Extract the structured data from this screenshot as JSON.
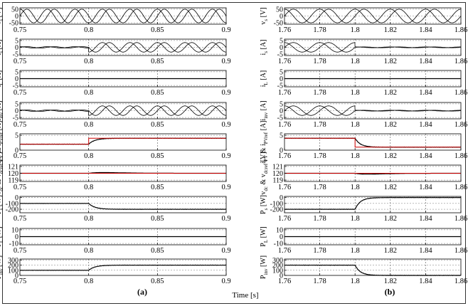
{
  "figure": {
    "xlabel": "Time [s]",
    "panel_labels": [
      "(a)",
      "(b)"
    ]
  },
  "chart_data": [
    {
      "type": "line",
      "column": "a",
      "x_ticks": [
        "0.75",
        "0.8",
        "0.85",
        "0.9"
      ],
      "x_tick_values": [
        0.75,
        0.8,
        0.85,
        0.9
      ],
      "xlim": [
        0.75,
        0.9
      ],
      "event_time": 0.8,
      "rows": [
        {
          "ylabel": "v_s [V]",
          "yticks": [
            "50",
            "0",
            "-50"
          ],
          "ytick_values": [
            50,
            0,
            -50
          ],
          "ylim": [
            -60,
            60
          ],
          "kind": "sine",
          "amp_before": 50,
          "amp_after": 50,
          "ref": null,
          "color": "#000000"
        },
        {
          "ylabel": "i_s [A]",
          "yticks": [
            "5",
            "0",
            "-5"
          ],
          "ytick_values": [
            5,
            0,
            -5
          ],
          "ylim": [
            -6,
            6
          ],
          "kind": "sine",
          "amp_before": 0.5,
          "amp_after": 3.5,
          "ref": null,
          "color": "#000000"
        },
        {
          "ylabel": "i_L [A]",
          "yticks": [
            "5",
            "0",
            "-5"
          ],
          "ytick_values": [
            5,
            0,
            -5
          ],
          "ylim": [
            -6,
            6
          ],
          "kind": "const",
          "before": 0,
          "after": 0,
          "ref": null,
          "color": "#000000"
        },
        {
          "ylabel": "i_inv [A]",
          "yticks": [
            "5",
            "0",
            "-5"
          ],
          "ytick_values": [
            5,
            0,
            -5
          ],
          "ylim": [
            -6,
            6
          ],
          "kind": "sine",
          "amp_before": 0.5,
          "amp_after": 3.5,
          "ref": null,
          "color": "#000000"
        },
        {
          "ylabel": "i_PV & i_PVref [A]",
          "yticks": [
            "5",
            "0"
          ],
          "ytick_values": [
            5,
            0
          ],
          "ylim": [
            0,
            5.5
          ],
          "kind": "step",
          "before": 2,
          "after": 4,
          "ref": "same",
          "color": "#000000",
          "ref_color": "#cc0000"
        },
        {
          "ylabel": "v_dc & v_dcref [V]",
          "yticks": [
            "121",
            "120",
            "119"
          ],
          "ytick_values": [
            121,
            120,
            119
          ],
          "ylim": [
            118.8,
            121.2
          ],
          "kind": "transient",
          "base": 120,
          "peak": 0.75,
          "ref": 120,
          "color": "#000000",
          "ref_color": "#cc0000"
        },
        {
          "ylabel": "P_s [W]",
          "yticks": [
            "0",
            "-100",
            "-200"
          ],
          "ytick_values": [
            0,
            -100,
            -200
          ],
          "ylim": [
            -260,
            20
          ],
          "kind": "step",
          "before": -100,
          "after": -200,
          "ref": null,
          "color": "#000000"
        },
        {
          "ylabel": "P_L [W]",
          "yticks": [
            "10",
            "0",
            "-10"
          ],
          "ytick_values": [
            10,
            0,
            -10
          ],
          "ylim": [
            -12,
            12
          ],
          "kind": "const",
          "before": 0,
          "after": 0,
          "ref": null,
          "color": "#000000"
        },
        {
          "ylabel": "P_inv [W]",
          "yticks": [
            "300",
            "200",
            "100",
            "0"
          ],
          "ytick_values": [
            300,
            200,
            100,
            0
          ],
          "ylim": [
            0,
            320
          ],
          "kind": "step",
          "before": 100,
          "after": 200,
          "ref": null,
          "color": "#000000"
        }
      ]
    },
    {
      "type": "line",
      "column": "b",
      "x_ticks": [
        "1.76",
        "1.78",
        "1.8",
        "1.82",
        "1.84",
        "1.86"
      ],
      "x_tick_values": [
        1.76,
        1.78,
        1.8,
        1.82,
        1.84,
        1.86
      ],
      "xlim": [
        1.76,
        1.86
      ],
      "event_time": 1.8,
      "rows": [
        {
          "ylabel": "v_s [V]",
          "yticks": [
            "50",
            "0",
            "-50"
          ],
          "ytick_values": [
            50,
            0,
            -50
          ],
          "ylim": [
            -60,
            60
          ],
          "kind": "sine",
          "amp_before": 50,
          "amp_after": 50,
          "ref": null,
          "color": "#000000"
        },
        {
          "ylabel": "i_s [A]",
          "yticks": [
            "5",
            "0",
            "-5"
          ],
          "ytick_values": [
            5,
            0,
            -5
          ],
          "ylim": [
            -6,
            6
          ],
          "kind": "sine",
          "amp_before": 3.5,
          "amp_after": 0.3,
          "ref": null,
          "color": "#000000"
        },
        {
          "ylabel": "i_L [A]",
          "yticks": [
            "5",
            "0",
            "-5"
          ],
          "ytick_values": [
            5,
            0,
            -5
          ],
          "ylim": [
            -6,
            6
          ],
          "kind": "const",
          "before": 0,
          "after": 0,
          "ref": null,
          "color": "#000000"
        },
        {
          "ylabel": "i_inv [A]",
          "yticks": [
            "5",
            "0",
            "-5"
          ],
          "ytick_values": [
            5,
            0,
            -5
          ],
          "ylim": [
            -6,
            6
          ],
          "kind": "sine",
          "amp_before": 3.5,
          "amp_after": 0.3,
          "ref": null,
          "color": "#000000"
        },
        {
          "ylabel": "i_PV & i_PVref [A]",
          "yticks": [
            "5",
            "0"
          ],
          "ytick_values": [
            5,
            0
          ],
          "ylim": [
            0,
            5.5
          ],
          "kind": "step",
          "before": 4,
          "after": 1,
          "ref": "same",
          "color": "#000000",
          "ref_color": "#cc0000"
        },
        {
          "ylabel": "v_dc & v_dcref [V]",
          "yticks": [
            "121",
            "120",
            "119"
          ],
          "ytick_values": [
            121,
            120,
            119
          ],
          "ylim": [
            118.8,
            121.2
          ],
          "kind": "transient",
          "base": 120,
          "peak": -0.9,
          "ref": 120,
          "color": "#000000",
          "ref_color": "#cc0000"
        },
        {
          "ylabel": "P_s [W]",
          "yticks": [
            "0",
            "-100",
            "-200"
          ],
          "ytick_values": [
            0,
            -100,
            -200
          ],
          "ylim": [
            -260,
            20
          ],
          "kind": "step",
          "before": -200,
          "after": 0,
          "ref": null,
          "color": "#000000"
        },
        {
          "ylabel": "P_L [W]",
          "yticks": [
            "10",
            "0",
            "-10"
          ],
          "ytick_values": [
            10,
            0,
            -10
          ],
          "ylim": [
            -12,
            12
          ],
          "kind": "const",
          "before": 0,
          "after": 0,
          "ref": null,
          "color": "#000000"
        },
        {
          "ylabel": "P_inv [W]",
          "yticks": [
            "300",
            "200",
            "100",
            "0"
          ],
          "ytick_values": [
            300,
            200,
            100,
            0
          ],
          "ylim": [
            0,
            320
          ],
          "kind": "step",
          "before": 200,
          "after": 0,
          "ref": null,
          "color": "#000000"
        }
      ]
    }
  ]
}
